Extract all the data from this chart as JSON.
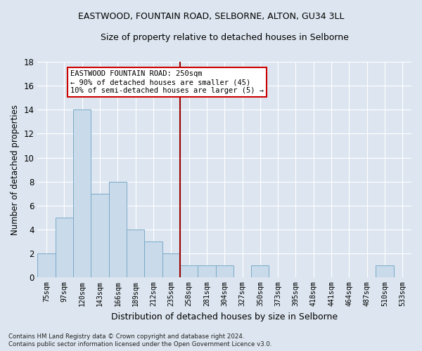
{
  "title1": "EASTWOOD, FOUNTAIN ROAD, SELBORNE, ALTON, GU34 3LL",
  "title2": "Size of property relative to detached houses in Selborne",
  "xlabel": "Distribution of detached houses by size in Selborne",
  "ylabel": "Number of detached properties",
  "footer1": "Contains HM Land Registry data © Crown copyright and database right 2024.",
  "footer2": "Contains public sector information licensed under the Open Government Licence v3.0.",
  "bar_labels": [
    "75sqm",
    "97sqm",
    "120sqm",
    "143sqm",
    "166sqm",
    "189sqm",
    "212sqm",
    "235sqm",
    "258sqm",
    "281sqm",
    "304sqm",
    "327sqm",
    "350sqm",
    "373sqm",
    "395sqm",
    "418sqm",
    "441sqm",
    "464sqm",
    "487sqm",
    "510sqm",
    "533sqm"
  ],
  "bar_values": [
    2,
    5,
    14,
    7,
    8,
    4,
    3,
    2,
    1,
    1,
    1,
    0,
    1,
    0,
    0,
    0,
    0,
    0,
    0,
    1,
    0
  ],
  "bar_color": "#c9daea",
  "bar_edge_color": "#7aaac8",
  "background_color": "#dde6f0",
  "plot_bg_color": "#dde6f0",
  "grid_color": "#ffffff",
  "vline_color": "#990000",
  "annotation_text": "EASTWOOD FOUNTAIN ROAD: 250sqm\n← 90% of detached houses are smaller (45)\n10% of semi-detached houses are larger (5) →",
  "annotation_box_color": "#ffffff",
  "annotation_box_edge": "#cc0000",
  "ylim": [
    0,
    18
  ],
  "yticks": [
    0,
    2,
    4,
    6,
    8,
    10,
    12,
    14,
    16,
    18
  ]
}
